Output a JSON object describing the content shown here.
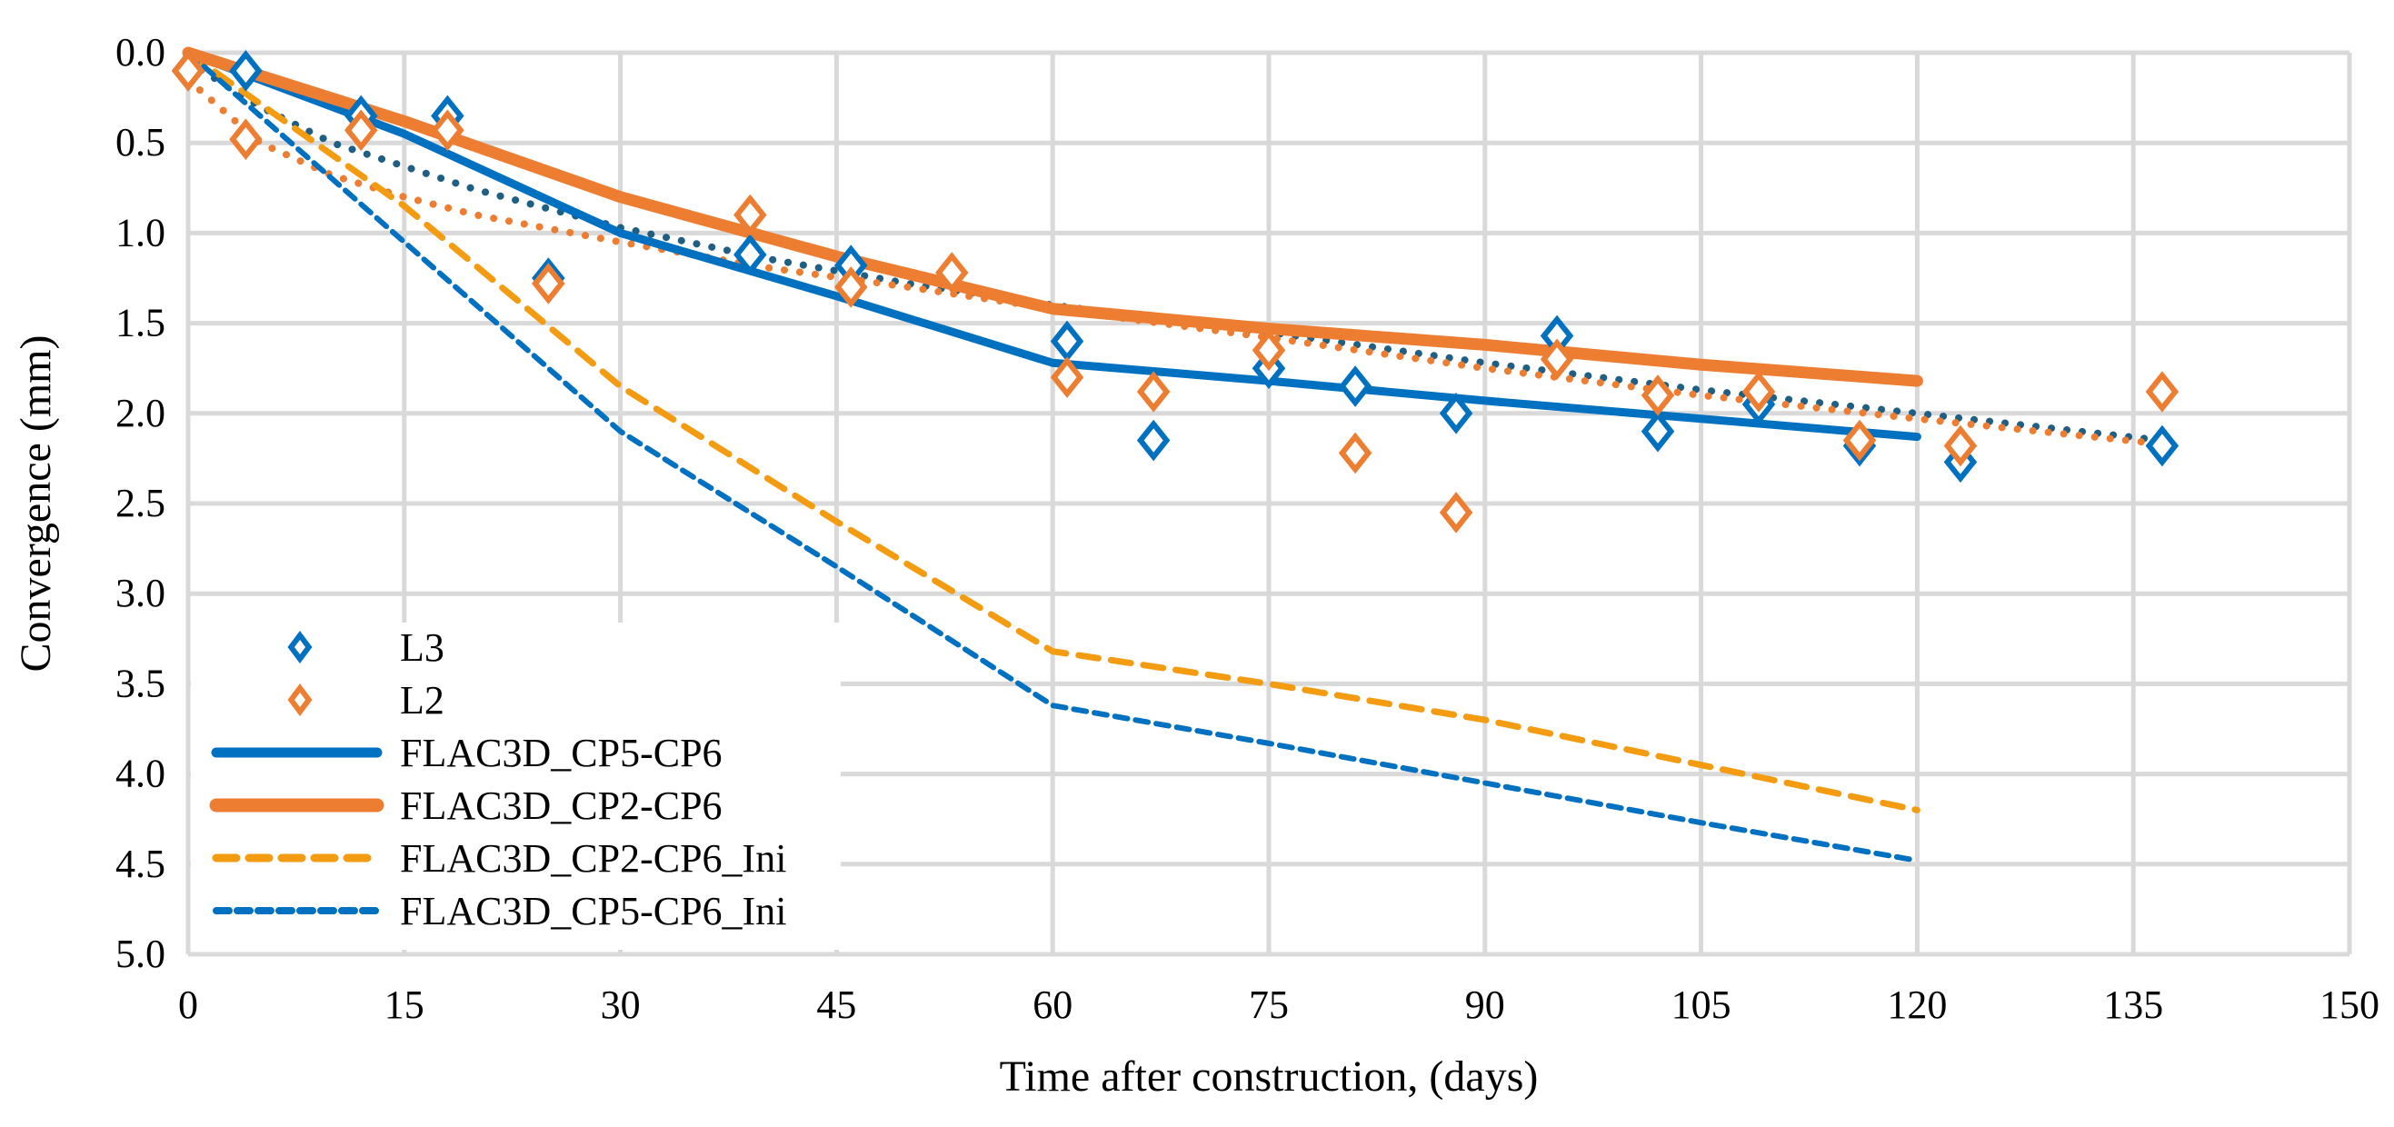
{
  "chart_data": {
    "type": "scatter",
    "title": "",
    "xlabel": "Time after construction, (days)",
    "ylabel": "Convergence (mm)",
    "xlim": [
      0,
      150
    ],
    "ylim": [
      0,
      5.0
    ],
    "y_inverted": true,
    "grid": true,
    "legend_position": "bottom-left",
    "xticks": [
      "0",
      "15",
      "30",
      "45",
      "60",
      "75",
      "90",
      "105",
      "120",
      "135",
      "150"
    ],
    "yticks": [
      "0.0",
      "0.5",
      "1.0",
      "1.5",
      "2.0",
      "2.5",
      "3.0",
      "3.5",
      "4.0",
      "4.5",
      "5.0"
    ],
    "xtick_values": [
      0,
      15,
      30,
      45,
      60,
      75,
      90,
      105,
      120,
      135,
      150
    ],
    "ytick_values": [
      0,
      0.5,
      1.0,
      1.5,
      2.0,
      2.5,
      3.0,
      3.5,
      4.0,
      4.5,
      5.0
    ],
    "series": [
      {
        "name": "L3",
        "kind": "markers",
        "color": "#0070C0",
        "x": [
          0,
          4,
          12,
          18,
          25,
          39,
          46,
          61,
          67,
          75,
          81,
          88,
          95,
          102,
          109,
          116,
          123,
          137
        ],
        "y": [
          0.1,
          0.1,
          0.35,
          0.35,
          1.25,
          1.12,
          1.18,
          1.6,
          2.15,
          1.75,
          1.85,
          2.0,
          1.57,
          2.1,
          1.95,
          2.18,
          2.27,
          2.18
        ]
      },
      {
        "name": "L2",
        "kind": "markers",
        "color": "#ED7D31",
        "x": [
          0,
          4,
          12,
          18,
          25,
          39,
          46,
          53,
          61,
          67,
          75,
          81,
          88,
          95,
          102,
          109,
          116,
          123,
          137
        ],
        "y": [
          0.1,
          0.48,
          0.43,
          0.43,
          1.28,
          0.9,
          1.3,
          1.22,
          1.8,
          1.88,
          1.65,
          2.22,
          2.55,
          1.7,
          1.9,
          1.88,
          2.15,
          2.18,
          1.88
        ]
      },
      {
        "name": "FLAC3D_CP5-CP6",
        "kind": "solid",
        "color": "#0070C0",
        "x": [
          0,
          15,
          30,
          45,
          60,
          75,
          90,
          105,
          120
        ],
        "y": [
          0.0,
          0.45,
          1.0,
          1.35,
          1.72,
          1.82,
          1.93,
          2.03,
          2.13
        ]
      },
      {
        "name": "FLAC3D_CP2-CP6",
        "kind": "solid-thick",
        "color": "#ED7D31",
        "x": [
          0,
          15,
          30,
          45,
          60,
          75,
          90,
          105,
          120
        ],
        "y": [
          0.0,
          0.38,
          0.8,
          1.13,
          1.42,
          1.53,
          1.62,
          1.73,
          1.82
        ]
      },
      {
        "name": "FLAC3D_CP2-CP6_Ini",
        "kind": "dashed",
        "color": "#F39C12",
        "x": [
          0,
          15,
          30,
          45,
          60,
          75,
          90,
          105,
          120
        ],
        "y": [
          0.0,
          0.85,
          1.85,
          2.6,
          3.32,
          3.5,
          3.7,
          3.95,
          4.2
        ]
      },
      {
        "name": "FLAC3D_CP5-CP6_Ini",
        "kind": "dashed-fine",
        "color": "#0070C0",
        "x": [
          0,
          15,
          30,
          45,
          60,
          75,
          90,
          105,
          120
        ],
        "y": [
          0.0,
          1.05,
          2.1,
          2.85,
          3.62,
          3.83,
          4.05,
          4.27,
          4.48
        ]
      },
      {
        "name": "L3 trend",
        "kind": "dotted",
        "color": "#1F5F84",
        "in_legend": false,
        "x": [
          0,
          5,
          10,
          15,
          20,
          30,
          40,
          50,
          60,
          75,
          90,
          105,
          120,
          137
        ],
        "y": [
          0.05,
          0.3,
          0.5,
          0.63,
          0.76,
          0.97,
          1.14,
          1.28,
          1.4,
          1.55,
          1.72,
          1.87,
          2.0,
          2.15
        ]
      },
      {
        "name": "L2 trend",
        "kind": "dotted",
        "color": "#ED7D31",
        "in_legend": false,
        "x": [
          0,
          5,
          10,
          15,
          20,
          30,
          40,
          50,
          60,
          75,
          90,
          105,
          120,
          137
        ],
        "y": [
          0.15,
          0.5,
          0.68,
          0.8,
          0.9,
          1.05,
          1.19,
          1.3,
          1.42,
          1.58,
          1.75,
          1.9,
          2.03,
          2.17
        ]
      }
    ]
  }
}
